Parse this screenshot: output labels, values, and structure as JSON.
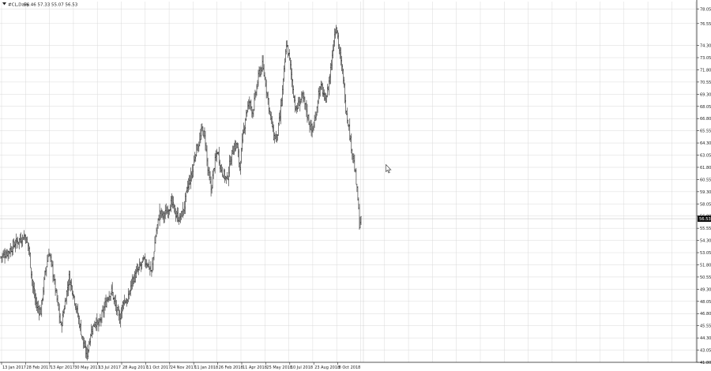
{
  "header": {
    "symbol_label": "#CL,Daily",
    "ohlc_label": "56.46 57.33 55.07 56.53",
    "menu_icon": "triangle-down-icon"
  },
  "price_badge": {
    "value": "56.53",
    "bg": "#111111",
    "fg": "#ffffff"
  },
  "colors": {
    "grid": "#d9d9d9",
    "axis": "#222222",
    "bar": "#111111",
    "bg": "#ffffff",
    "hline": "#c8c8c8"
  },
  "chart_data": {
    "type": "ohlc",
    "title": "#CL,Daily",
    "ylim": [
      41.8,
      78.8
    ],
    "y_ticks": [
      78.05,
      76.55,
      74.3,
      73.05,
      71.8,
      70.55,
      69.3,
      68.05,
      66.8,
      65.55,
      64.3,
      63.05,
      61.8,
      60.55,
      59.3,
      58.05,
      56.8,
      55.55,
      54.3,
      53.05,
      51.8,
      50.55,
      49.3,
      48.05,
      46.8,
      45.55,
      44.3,
      43.05,
      41.8
    ],
    "x_labels": [
      "13 Jan 2017",
      "28 Feb 2017",
      "13 Apr 2017",
      "30 May 2017",
      "13 Jul 2017",
      "28 Aug 2017",
      "11 Oct 2017",
      "24 Nov 2017",
      "11 Jan 2018",
      "26 Feb 2018",
      "11 Apr 2018",
      "25 May 2018",
      "10 Jul 2018",
      "23 Aug 2018",
      "8 Oct 2018"
    ],
    "bar_count": 450,
    "close_path": [
      [
        0,
        52.6
      ],
      [
        10,
        53.2
      ],
      [
        20,
        54.2
      ],
      [
        30,
        54.8
      ],
      [
        35,
        53.5
      ],
      [
        40,
        49.5
      ],
      [
        45,
        47.5
      ],
      [
        50,
        47.0
      ],
      [
        55,
        50.8
      ],
      [
        60,
        53.2
      ],
      [
        65,
        51.0
      ],
      [
        70,
        48.2
      ],
      [
        75,
        45.4
      ],
      [
        80,
        48.0
      ],
      [
        85,
        50.5
      ],
      [
        90,
        49.0
      ],
      [
        95,
        47.0
      ],
      [
        100,
        45.0
      ],
      [
        105,
        43.0
      ],
      [
        108,
        42.7
      ],
      [
        112,
        44.8
      ],
      [
        118,
        46.1
      ],
      [
        122,
        45.5
      ],
      [
        128,
        47.1
      ],
      [
        133,
        48.5
      ],
      [
        138,
        49.2
      ],
      [
        143,
        47.5
      ],
      [
        148,
        46.2
      ],
      [
        153,
        48.2
      ],
      [
        158,
        48.0
      ],
      [
        163,
        50.0
      ],
      [
        168,
        50.8
      ],
      [
        173,
        51.5
      ],
      [
        178,
        52.2
      ],
      [
        183,
        52.0
      ],
      [
        188,
        51.0
      ],
      [
        193,
        54.8
      ],
      [
        198,
        57.2
      ],
      [
        203,
        56.8
      ],
      [
        208,
        57.5
      ],
      [
        213,
        58.2
      ],
      [
        218,
        57.0
      ],
      [
        223,
        56.5
      ],
      [
        228,
        57.5
      ],
      [
        233,
        59.8
      ],
      [
        238,
        61.0
      ],
      [
        243,
        63.5
      ],
      [
        248,
        64.5
      ],
      [
        251,
        65.8
      ],
      [
        255,
        64.5
      ],
      [
        258,
        61.5
      ],
      [
        262,
        59.5
      ],
      [
        266,
        62.0
      ],
      [
        270,
        63.5
      ],
      [
        274,
        61.8
      ],
      [
        278,
        61.0
      ],
      [
        282,
        60.5
      ],
      [
        286,
        62.5
      ],
      [
        290,
        63.8
      ],
      [
        294,
        64.2
      ],
      [
        298,
        61.8
      ],
      [
        302,
        65.0
      ],
      [
        306,
        67.5
      ],
      [
        310,
        68.5
      ],
      [
        314,
        67.5
      ],
      [
        318,
        69.5
      ],
      [
        322,
        71.5
      ],
      [
        326,
        72.2
      ],
      [
        330,
        70.5
      ],
      [
        335,
        67.5
      ],
      [
        340,
        65.0
      ],
      [
        344,
        64.8
      ],
      [
        348,
        67.0
      ],
      [
        352,
        70.5
      ],
      [
        356,
        74.5
      ],
      [
        360,
        72.8
      ],
      [
        364,
        70.0
      ],
      [
        368,
        67.5
      ],
      [
        372,
        68.5
      ],
      [
        376,
        69.0
      ],
      [
        380,
        68.0
      ],
      [
        384,
        66.5
      ],
      [
        388,
        65.5
      ],
      [
        392,
        66.8
      ],
      [
        396,
        69.5
      ],
      [
        400,
        70.0
      ],
      [
        404,
        68.5
      ],
      [
        408,
        70.0
      ],
      [
        412,
        72.5
      ],
      [
        415,
        75.0
      ],
      [
        418,
        76.5
      ],
      [
        421,
        74.5
      ],
      [
        424,
        72.5
      ],
      [
        427,
        71.0
      ],
      [
        430,
        68.0
      ],
      [
        433,
        66.5
      ],
      [
        436,
        64.5
      ],
      [
        439,
        63.0
      ],
      [
        442,
        61.0
      ],
      [
        445,
        58.5
      ],
      [
        447,
        56.0
      ],
      [
        449,
        56.53
      ]
    ]
  },
  "cursor_icon": "mouse-pointer-icon"
}
